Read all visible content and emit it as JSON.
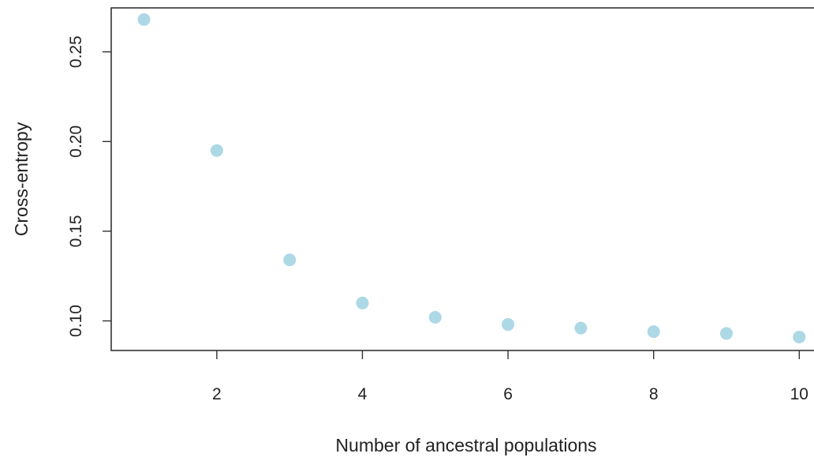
{
  "chart_data": {
    "type": "scatter",
    "title": "",
    "xlabel": "Number of ancestral populations",
    "ylabel": "Cross-entropy",
    "xlim": [
      0.55,
      10.3
    ],
    "ylim": [
      0.0835,
      0.2745
    ],
    "xticks": [
      2,
      4,
      6,
      8,
      10
    ],
    "xtick_labels": [
      "2",
      "4",
      "6",
      "8",
      "10"
    ],
    "yticks": [
      0.1,
      0.15,
      0.2,
      0.25
    ],
    "ytick_labels": [
      "0.10",
      "0.15",
      "0.20",
      "0.25"
    ],
    "grid": false,
    "point_color": "#add8e6",
    "series": [
      {
        "x": [
          1,
          2,
          3,
          4,
          5,
          6,
          7,
          8,
          9,
          10
        ],
        "y": [
          0.268,
          0.195,
          0.134,
          0.11,
          0.102,
          0.098,
          0.096,
          0.094,
          0.093,
          0.091
        ]
      }
    ]
  }
}
